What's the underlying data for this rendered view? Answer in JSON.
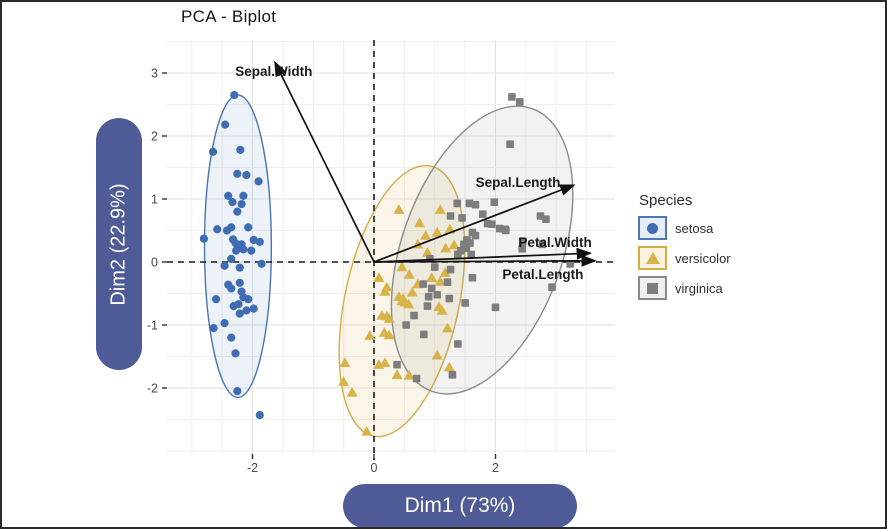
{
  "figure": {
    "title": "PCA - Biplot",
    "x_axis_pill": "Dim1 (73%)",
    "y_axis_pill": "Dim2 (22.9%)",
    "pill_color": "#4F5B96"
  },
  "legend": {
    "title": "Species",
    "items": [
      {
        "label": "setosa",
        "shape": "circle",
        "color": "#3E6DB3",
        "box_fill": "#E7EDF8",
        "box_border": "#4F74B8"
      },
      {
        "label": "versicolor",
        "shape": "triangle",
        "color": "#D7B34A",
        "box_fill": "#F8F2DE",
        "box_border": "#D2AF45"
      },
      {
        "label": "virginica",
        "shape": "square",
        "color": "#7D7D7D",
        "box_fill": "#EFEFEF",
        "box_border": "#8A8A8A"
      }
    ]
  },
  "chart_data": {
    "type": "scatter",
    "title": "PCA - Biplot",
    "xlabel": "Dim1 (73%)",
    "ylabel": "Dim2 (22.9%)",
    "xlim": [
      -3.4,
      3.97
    ],
    "ylim": [
      -3.05,
      3.52
    ],
    "x_ticks": [
      -2,
      0,
      2
    ],
    "y_ticks": [
      3,
      2,
      1,
      0,
      -1,
      -2
    ],
    "grid": "on",
    "zero_lines": "dashed",
    "legend_position": "right",
    "series": [
      {
        "name": "setosa",
        "marker": "circle",
        "color": "#3E6DB3",
        "ellipse": {
          "cx": -2.24,
          "cy": 0.25,
          "rx": 0.55,
          "ry": 2.4,
          "angle": 0,
          "fill": "rgba(79,116,184,0.10)",
          "stroke": "#4A74B8"
        },
        "points": [
          [
            -2.3,
            2.65
          ],
          [
            -2.45,
            2.18
          ],
          [
            -2.65,
            1.75
          ],
          [
            -2.2,
            1.78
          ],
          [
            -2.25,
            1.4
          ],
          [
            -2.1,
            1.38
          ],
          [
            -1.9,
            1.28
          ],
          [
            -2.4,
            1.05
          ],
          [
            -2.33,
            0.95
          ],
          [
            -2.15,
            1.05
          ],
          [
            -2.18,
            0.92
          ],
          [
            -2.25,
            0.8
          ],
          [
            -2.58,
            0.52
          ],
          [
            -2.42,
            0.5
          ],
          [
            -2.35,
            0.55
          ],
          [
            -2.8,
            0.37
          ],
          [
            -2.07,
            0.55
          ],
          [
            -2.32,
            0.36
          ],
          [
            -2.28,
            0.3
          ],
          [
            -2.23,
            0.25
          ],
          [
            -2.18,
            0.28
          ],
          [
            -2.27,
            0.18
          ],
          [
            -2.22,
            0.22
          ],
          [
            -2.15,
            0.2
          ],
          [
            -2.02,
            0.18
          ],
          [
            -1.98,
            0.35
          ],
          [
            -1.88,
            0.32
          ],
          [
            -2.35,
            0.05
          ],
          [
            -2.46,
            -0.06
          ],
          [
            -2.21,
            -0.09
          ],
          [
            -1.85,
            -0.03
          ],
          [
            -2.4,
            -0.36
          ],
          [
            -2.35,
            -0.42
          ],
          [
            -2.21,
            -0.33
          ],
          [
            -2.18,
            -0.47
          ],
          [
            -2.6,
            -0.59
          ],
          [
            -2.23,
            -0.67
          ],
          [
            -2.15,
            -0.56
          ],
          [
            -2.07,
            -0.59
          ],
          [
            -2.31,
            -0.7
          ],
          [
            -2.1,
            -0.77
          ],
          [
            -1.98,
            -0.74
          ],
          [
            -2.21,
            -0.82
          ],
          [
            -2.64,
            -1.05
          ],
          [
            -2.46,
            -0.97
          ],
          [
            -2.35,
            -1.2
          ],
          [
            -2.28,
            -1.45
          ],
          [
            -2.25,
            -2.05
          ],
          [
            -1.88,
            -2.43
          ]
        ]
      },
      {
        "name": "versicolor",
        "marker": "triangle",
        "color": "#D7B34A",
        "ellipse": {
          "cx": 0.46,
          "cy": -0.62,
          "rx": 0.94,
          "ry": 2.19,
          "angle": 12,
          "fill": "rgba(213,181,75,0.13)",
          "stroke": "#D2AF45"
        },
        "points": [
          [
            0.41,
            0.83
          ],
          [
            1.09,
            0.83
          ],
          [
            0.75,
            0.62
          ],
          [
            1.25,
            0.52
          ],
          [
            0.85,
            0.42
          ],
          [
            0.72,
            0.28
          ],
          [
            1.18,
            0.22
          ],
          [
            0.88,
            0.15
          ],
          [
            1.32,
            0.27
          ],
          [
            1.04,
            0.47
          ],
          [
            0.46,
            -0.08
          ],
          [
            1.17,
            -0.17
          ],
          [
            0.58,
            -0.2
          ],
          [
            0.08,
            -0.25
          ],
          [
            0.21,
            -0.4
          ],
          [
            0.18,
            -0.47
          ],
          [
            0.63,
            -0.48
          ],
          [
            1.09,
            -0.31
          ],
          [
            0.41,
            -0.55
          ],
          [
            0.46,
            -0.62
          ],
          [
            0.51,
            -0.64
          ],
          [
            0.57,
            -0.67
          ],
          [
            0.48,
            -0.58
          ],
          [
            0.13,
            -0.85
          ],
          [
            0.21,
            -0.86
          ],
          [
            0.25,
            -0.9
          ],
          [
            1.07,
            -0.71
          ],
          [
            1.12,
            -0.77
          ],
          [
            0.17,
            -1.12
          ],
          [
            0.25,
            -1.16
          ],
          [
            -0.07,
            -1.17
          ],
          [
            1.21,
            -1.05
          ],
          [
            -0.48,
            -1.6
          ],
          [
            0.08,
            -1.63
          ],
          [
            0.18,
            -1.6
          ],
          [
            0.38,
            -1.79
          ],
          [
            0.58,
            -1.8
          ],
          [
            -0.5,
            -1.9
          ],
          [
            -0.36,
            -2.07
          ],
          [
            -0.12,
            -2.69
          ],
          [
            1.04,
            -1.48
          ],
          [
            1.24,
            -1.67
          ],
          [
            0.72,
            -0.35
          ],
          [
            0.95,
            -0.25
          ]
        ]
      },
      {
        "name": "virginica",
        "marker": "square",
        "color": "#7D7D7D",
        "ellipse": {
          "cx": 1.78,
          "cy": 0.19,
          "rx": 1.32,
          "ry": 2.38,
          "angle": 19.5,
          "fill": "rgba(128,128,128,0.10)",
          "stroke": "#8A8A8A"
        },
        "points": [
          [
            2.27,
            2.62
          ],
          [
            2.4,
            2.54
          ],
          [
            2.24,
            1.87
          ],
          [
            1.37,
            0.93
          ],
          [
            1.57,
            0.93
          ],
          [
            1.67,
            0.91
          ],
          [
            1.98,
            0.95
          ],
          [
            1.26,
            0.73
          ],
          [
            1.45,
            0.7
          ],
          [
            1.79,
            0.76
          ],
          [
            1.87,
            0.61
          ],
          [
            2.74,
            0.73
          ],
          [
            2.83,
            0.68
          ],
          [
            2.07,
            0.53
          ],
          [
            2.17,
            0.5
          ],
          [
            1.62,
            0.47
          ],
          [
            1.67,
            0.42
          ],
          [
            1.53,
            0.35
          ],
          [
            1.58,
            0.3
          ],
          [
            1.48,
            0.28
          ],
          [
            1.52,
            0.22
          ],
          [
            1.43,
            0.18
          ],
          [
            1.38,
            0.12
          ],
          [
            1.6,
            0.12
          ],
          [
            1.94,
            0.6
          ],
          [
            2.16,
            0.52
          ],
          [
            2.44,
            0.21
          ],
          [
            2.45,
            0.33
          ],
          [
            2.77,
            0.28
          ],
          [
            3.23,
            -0.03
          ],
          [
            2.93,
            -0.4
          ],
          [
            0.92,
            0.05
          ],
          [
            1.0,
            -0.08
          ],
          [
            1.26,
            -0.12
          ],
          [
            1.62,
            -0.25
          ],
          [
            1.21,
            -0.32
          ],
          [
            0.81,
            -0.35
          ],
          [
            0.95,
            -0.42
          ],
          [
            1.04,
            -0.52
          ],
          [
            0.9,
            -0.55
          ],
          [
            1.24,
            -0.58
          ],
          [
            0.88,
            -0.7
          ],
          [
            1.5,
            -0.65
          ],
          [
            2.0,
            -0.72
          ],
          [
            0.66,
            -0.85
          ],
          [
            0.53,
            -1.0
          ],
          [
            0.82,
            -1.15
          ],
          [
            1.38,
            -1.3
          ],
          [
            0.38,
            -1.63
          ],
          [
            1.29,
            -1.79
          ],
          [
            0.7,
            -1.85
          ]
        ]
      }
    ],
    "loadings": [
      {
        "label": "Sepal.Width",
        "x": -1.63,
        "y": 3.17,
        "label_x": -1.65,
        "label_y": 3.03
      },
      {
        "label": "Sepal.Length",
        "x": 3.29,
        "y": 1.22,
        "label_x": 2.37,
        "label_y": 1.27
      },
      {
        "label": "Petal.Width",
        "x": 3.56,
        "y": 0.14,
        "label_x": 2.98,
        "label_y": 0.32
      },
      {
        "label": "Petal.Length",
        "x": 3.64,
        "y": 0.02,
        "label_x": 2.78,
        "label_y": -0.19
      }
    ]
  }
}
